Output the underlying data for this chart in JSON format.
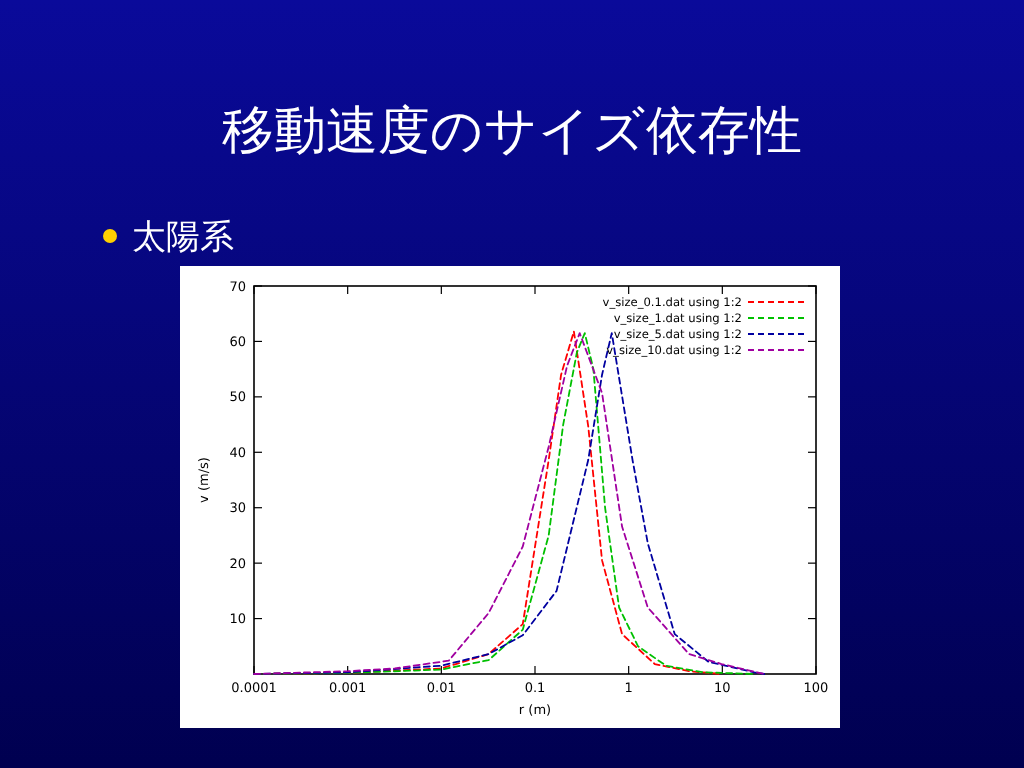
{
  "chart_data": {
    "type": "line",
    "title": "移動速度のサイズ依存性",
    "subtitle": "太陽系",
    "xlabel": "r (m)",
    "ylabel": "v (m/s)",
    "log": "x",
    "xlim": [
      0.0001,
      100
    ],
    "xticks": [
      0.0001,
      0.001,
      0.01,
      0.1,
      1,
      10,
      100
    ],
    "ylim": [
      0,
      70
    ],
    "yticks": [
      10,
      20,
      30,
      40,
      50,
      60,
      70
    ],
    "grid": false,
    "legend": "top right",
    "line_style": "dashed",
    "marker": "none",
    "series": [
      {
        "name": "v_size_0.1.dat using 1:2",
        "color": "#ff0000",
        "x": [
          0.0001,
          0.001,
          0.01,
          0.032,
          0.074,
          0.14,
          0.19,
          0.26,
          0.37,
          0.52,
          0.85,
          1.9,
          4.4,
          9.8
        ],
        "values": [
          0,
          0.2,
          1,
          3.6,
          9,
          38.6,
          54,
          61.8,
          44.7,
          20.5,
          7.2,
          1.8,
          0.5,
          0
        ]
      },
      {
        "name": "v_size_1.dat using 1:2",
        "color": "#00c000",
        "x": [
          0.0001,
          0.001,
          0.01,
          0.032,
          0.074,
          0.14,
          0.2,
          0.28,
          0.34,
          0.42,
          0.56,
          0.79,
          1.26,
          2.5,
          6.3,
          22
        ],
        "values": [
          0,
          0.2,
          0.8,
          2.5,
          8,
          25,
          45,
          58,
          61.5,
          55,
          30,
          12,
          5,
          1.5,
          0.3,
          0
        ]
      },
      {
        "name": "v_size_5.dat using 1:2",
        "color": "#0000a0",
        "x": [
          0.0001,
          0.001,
          0.01,
          0.032,
          0.074,
          0.17,
          0.37,
          0.52,
          0.66,
          1.1,
          1.6,
          3.1,
          7.1,
          22,
          28
        ],
        "values": [
          0,
          0.3,
          1.5,
          3.6,
          7,
          15,
          38.6,
          54,
          61.5,
          38.6,
          23.6,
          7.2,
          2.2,
          0.3,
          0
        ]
      },
      {
        "name": "v_size_10.dat using 1:2",
        "color": "#a000a0",
        "x": [
          0.0001,
          0.001,
          0.0032,
          0.012,
          0.032,
          0.074,
          0.14,
          0.22,
          0.3,
          0.52,
          0.85,
          1.6,
          4.4,
          9.8,
          28
        ],
        "values": [
          0,
          0.5,
          1,
          2.4,
          11,
          23,
          41,
          55.6,
          61.5,
          50.7,
          26.6,
          12,
          3.6,
          1.8,
          0
        ]
      }
    ]
  }
}
